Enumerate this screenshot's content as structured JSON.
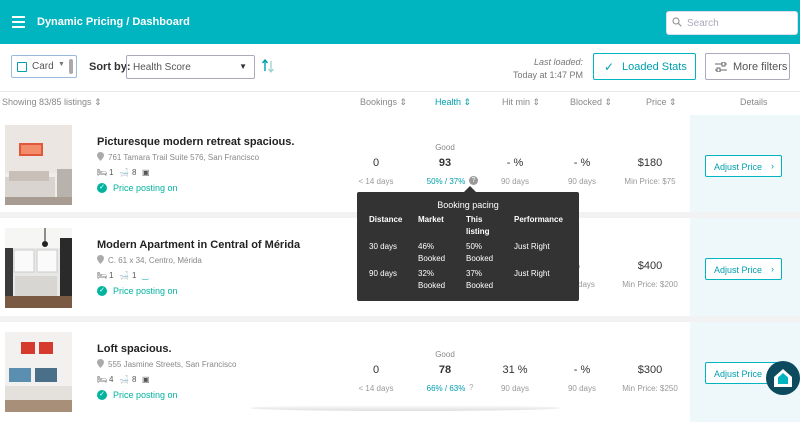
{
  "header": {
    "title": "Dynamic Pricing / Dashboard",
    "search_placeholder": "Search"
  },
  "toolbar": {
    "view": "Card",
    "sort_label": "Sort by:",
    "sort_value": "Health Score",
    "last_loaded_line1": "Last loaded:",
    "last_loaded_line2": "Today at 1:47 PM",
    "loaded_stats": "Loaded Stats",
    "more_filters": "More filters"
  },
  "columns": {
    "showing": "Showing 83/85 listings",
    "bookings": "Bookings",
    "health": "Health",
    "hit_min": "Hit min",
    "blocked": "Blocked",
    "price": "Price",
    "details": "Details"
  },
  "listings": [
    {
      "title": "Picturesque modern retreat spacious.",
      "address": "761 Tamara Trail Suite 576, San Francisco",
      "beds": "1",
      "baths": "8",
      "posting": "Price posting on",
      "bookings": "0",
      "bookings_sub": "< 14 days",
      "health_label": "Good",
      "health": "93",
      "pacing": "50% / 37%",
      "hit_min": "- %",
      "hit_min_sub": "90 days",
      "blocked": "- %",
      "blocked_sub": "90 days",
      "price": "$180",
      "min_price": "Min Price: $75",
      "action": "Adjust Price"
    },
    {
      "title": "Modern Apartment in Central of Mérida",
      "address": "C. 61 x 34, Centro, Mérida",
      "beds": "1",
      "baths": "1",
      "posting": "Price posting on",
      "blocked": "%",
      "blocked_sub": "days",
      "price": "$400",
      "min_price": "Min Price: $200",
      "action": "Adjust Price"
    },
    {
      "title": "Loft spacious.",
      "address": "555 Jasmine Streets, San Francisco",
      "beds": "4",
      "baths": "8",
      "posting": "Price posting on",
      "bookings": "0",
      "bookings_sub": "< 14 days",
      "health_label": "Good",
      "health": "78",
      "pacing": "66% / 63%",
      "hit_min": "31 %",
      "hit_min_sub": "90 days",
      "blocked": "- %",
      "blocked_sub": "90 days",
      "price": "$300",
      "min_price": "Min Price: $250",
      "action": "Adjust Price"
    }
  ],
  "tooltip": {
    "title": "Booking pacing",
    "headers": {
      "distance": "Distance",
      "market": "Market",
      "this_listing_1": "This",
      "this_listing_2": "listing",
      "performance": "Performance"
    },
    "rows": [
      {
        "distance": "30 days",
        "market_1": "46%",
        "market_2": "Booked",
        "listing_1": "50%",
        "listing_2": "Booked",
        "performance": "Just Right"
      },
      {
        "distance": "90 days",
        "market_1": "32%",
        "market_2": "Booked",
        "listing_1": "37%",
        "listing_2": "Booked",
        "performance": "Just Right"
      }
    ]
  },
  "colors": {
    "accent": "#00b4c0",
    "posting": "#00b4a0"
  }
}
